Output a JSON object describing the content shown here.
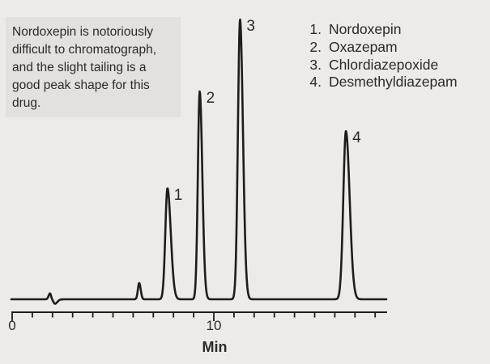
{
  "note_box": {
    "text": "Nordoxepin is notoriously\ndifficult to chromatograph,\nand the slight tailing is a\ngood peak shape for this\ndrug."
  },
  "legend": {
    "items": [
      {
        "number": "1.",
        "name": "Nordoxepin"
      },
      {
        "number": "2.",
        "name": "Oxazepam"
      },
      {
        "number": "3.",
        "name": "Chlordiazepoxide"
      },
      {
        "number": "4.",
        "name": "Desmethyldiazepam"
      }
    ]
  },
  "chart_data": {
    "type": "line",
    "xlabel": "Min",
    "x_axis": {
      "min": 0,
      "max": 18.6,
      "tick_interval_min": 1,
      "tick_count": 19,
      "labeled_ticks": [
        {
          "t": 0,
          "text": "0"
        },
        {
          "t": 10,
          "text": "10"
        }
      ]
    },
    "y_axis": {
      "shown": false
    },
    "series_name": "trace",
    "trace_components": [
      {
        "label": "",
        "name": "",
        "retention_min": 1.88,
        "rel_height": 0.021,
        "sigma_left_min": 0.07,
        "sigma_right_min": 0.05
      },
      {
        "label": "",
        "name": "",
        "retention_min": 2.12,
        "rel_height": -0.016,
        "sigma_left_min": 0.07,
        "sigma_right_min": 0.12
      },
      {
        "label": "",
        "name": "",
        "retention_min": 6.3,
        "rel_height": 0.058,
        "sigma_left_min": 0.065,
        "sigma_right_min": 0.075
      },
      {
        "label": "1",
        "name": "Nordoxepin",
        "retention_min": 7.7,
        "rel_height": 0.397,
        "sigma_left_min": 0.105,
        "sigma_right_min": 0.165
      },
      {
        "label": "2",
        "name": "Oxazepam",
        "retention_min": 9.3,
        "rel_height": 0.743,
        "sigma_left_min": 0.092,
        "sigma_right_min": 0.13
      },
      {
        "label": "3",
        "name": "Chlordiazepoxide",
        "retention_min": 11.3,
        "rel_height": 1.0,
        "sigma_left_min": 0.105,
        "sigma_right_min": 0.145
      },
      {
        "label": "4",
        "name": "Desmethyldiazepam",
        "retention_min": 16.55,
        "rel_height": 0.601,
        "sigma_left_min": 0.13,
        "sigma_right_min": 0.185
      }
    ]
  },
  "colors": {
    "background": "#ecebe9",
    "note_box_bg": "#e2e1df",
    "trace": "#1d1d1b",
    "axis": "#1d1d1b",
    "text": "#2a2a28"
  }
}
